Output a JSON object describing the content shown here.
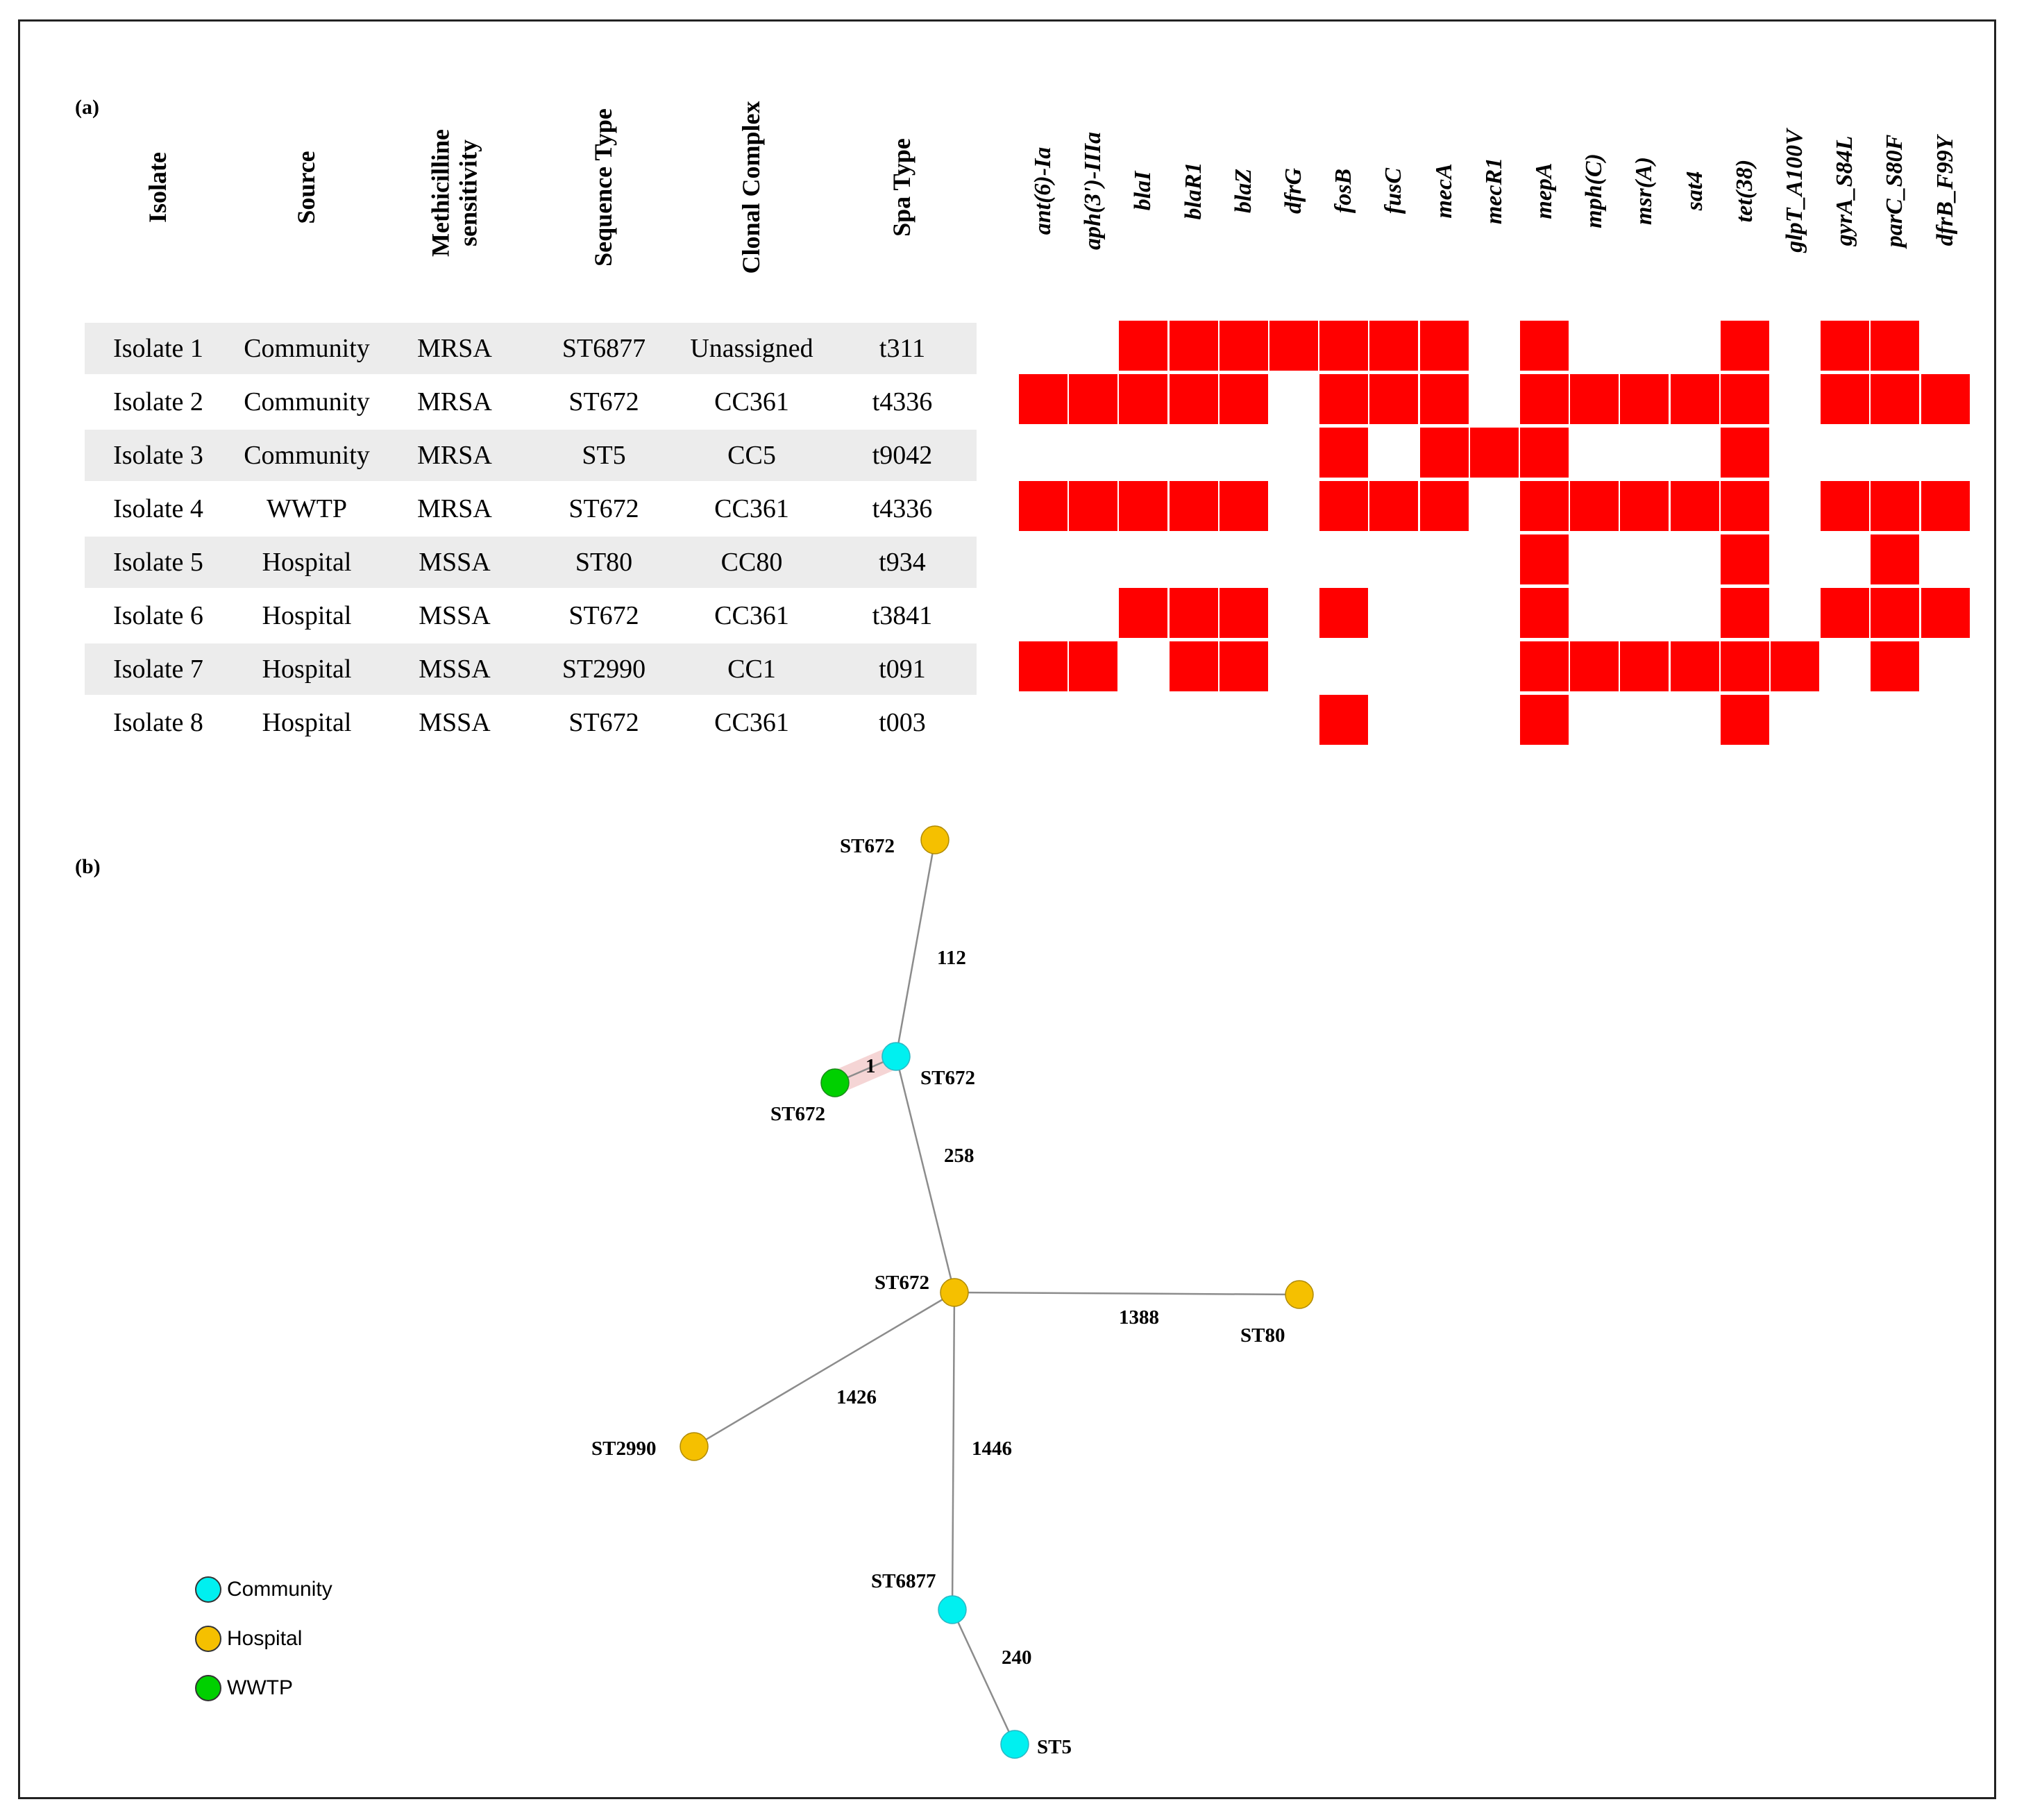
{
  "panel_a_label": "(a)",
  "panel_b_label": "(b)",
  "table": {
    "headers": [
      "Isolate",
      "Source",
      "Methicilline sensitivity",
      "Sequence Type",
      "Clonal Complex",
      "Spa Type"
    ],
    "rows": [
      [
        "Isolate 1",
        "Community",
        "MRSA",
        "ST6877",
        "Unassigned",
        "t311"
      ],
      [
        "Isolate 2",
        "Community",
        "MRSA",
        "ST672",
        "CC361",
        "t4336"
      ],
      [
        "Isolate 3",
        "Community",
        "MRSA",
        "ST5",
        "CC5",
        "t9042"
      ],
      [
        "Isolate 4",
        "WWTP",
        "MRSA",
        "ST672",
        "CC361",
        "t4336"
      ],
      [
        "Isolate 5",
        "Hospital",
        "MSSA",
        "ST80",
        "CC80",
        "t934"
      ],
      [
        "Isolate 6",
        "Hospital",
        "MSSA",
        "ST672",
        "CC361",
        "t3841"
      ],
      [
        "Isolate 7",
        "Hospital",
        "MSSA",
        "ST2990",
        "CC1",
        "t091"
      ],
      [
        "Isolate 8",
        "Hospital",
        "MSSA",
        "ST672",
        "CC361",
        "t003"
      ]
    ]
  },
  "chart_data": [
    {
      "type": "heatmap",
      "title": "",
      "genes": [
        "ant(6)-Ia",
        "aph(3')-IIIa",
        "blaI",
        "blaR1",
        "blaZ",
        "dfrG",
        "fosB",
        "fusC",
        "mecA",
        "mecR1",
        "mepA",
        "mph(C)",
        "msr(A)",
        "sat4",
        "tet(38)",
        "glpT_A100V",
        "gyrA_S84L",
        "parC_S80F",
        "dfrB_F99Y"
      ],
      "isolates": [
        "Isolate 1",
        "Isolate 2",
        "Isolate 3",
        "Isolate 4",
        "Isolate 5",
        "Isolate 6",
        "Isolate 7",
        "Isolate 8"
      ],
      "presence_color": "#ff0000",
      "matrix": [
        [
          0,
          0,
          1,
          1,
          1,
          1,
          1,
          1,
          1,
          0,
          1,
          0,
          0,
          0,
          1,
          0,
          1,
          1,
          0
        ],
        [
          1,
          1,
          1,
          1,
          1,
          0,
          1,
          1,
          1,
          0,
          1,
          1,
          1,
          1,
          1,
          0,
          1,
          1,
          1
        ],
        [
          0,
          0,
          0,
          0,
          0,
          0,
          1,
          0,
          1,
          1,
          1,
          0,
          0,
          0,
          1,
          0,
          0,
          0,
          0
        ],
        [
          1,
          1,
          1,
          1,
          1,
          0,
          1,
          1,
          1,
          0,
          1,
          1,
          1,
          1,
          1,
          0,
          1,
          1,
          1
        ],
        [
          0,
          0,
          0,
          0,
          0,
          0,
          0,
          0,
          0,
          0,
          1,
          0,
          0,
          0,
          1,
          0,
          0,
          1,
          0
        ],
        [
          0,
          0,
          1,
          1,
          1,
          0,
          1,
          0,
          0,
          0,
          1,
          0,
          0,
          0,
          1,
          0,
          1,
          1,
          1
        ],
        [
          1,
          1,
          0,
          1,
          1,
          0,
          0,
          0,
          0,
          0,
          1,
          1,
          1,
          1,
          1,
          1,
          0,
          1,
          0
        ],
        [
          0,
          0,
          0,
          0,
          0,
          0,
          1,
          0,
          0,
          0,
          1,
          0,
          0,
          0,
          1,
          0,
          0,
          0,
          0
        ]
      ]
    },
    {
      "type": "network",
      "title": "",
      "nodes": [
        {
          "id": "n_top",
          "label": "ST672",
          "group": "Hospital"
        },
        {
          "id": "n_comm672",
          "label": "ST672",
          "group": "Community"
        },
        {
          "id": "n_wwtp",
          "label": "ST672",
          "group": "WWTP"
        },
        {
          "id": "n_hub",
          "label": "ST672",
          "group": "Hospital"
        },
        {
          "id": "n_st80",
          "label": "ST80",
          "group": "Hospital"
        },
        {
          "id": "n_st2990",
          "label": "ST2990",
          "group": "Hospital"
        },
        {
          "id": "n_st6877",
          "label": "ST6877",
          "group": "Community"
        },
        {
          "id": "n_st5",
          "label": "ST5",
          "group": "Community"
        }
      ],
      "edges": [
        {
          "source": "n_top",
          "target": "n_comm672",
          "weight": "112"
        },
        {
          "source": "n_wwtp",
          "target": "n_comm672",
          "weight": "1"
        },
        {
          "source": "n_comm672",
          "target": "n_hub",
          "weight": "258"
        },
        {
          "source": "n_hub",
          "target": "n_st80",
          "weight": "1388"
        },
        {
          "source": "n_hub",
          "target": "n_st2990",
          "weight": "1426"
        },
        {
          "source": "n_hub",
          "target": "n_st6877",
          "weight": "1446"
        },
        {
          "source": "n_st6877",
          "target": "n_st5",
          "weight": "240"
        }
      ],
      "legend": [
        {
          "label": "Community",
          "color": "#00f0f0"
        },
        {
          "label": "Hospital",
          "color": "#f5c000"
        },
        {
          "label": "WWTP",
          "color": "#00d000"
        }
      ]
    }
  ]
}
